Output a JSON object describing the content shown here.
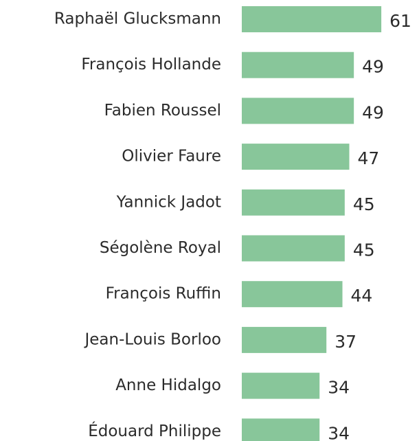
{
  "chart_data": {
    "type": "bar",
    "orientation": "horizontal",
    "color": "#88c69a",
    "categories": [
      "Raphaël Glucksmann",
      "François Hollande",
      "Fabien Roussel",
      "Olivier Faure",
      "Yannick Jadot",
      "Ségolène Royal",
      "François Ruffin",
      "Jean-Louis Borloo",
      "Anne Hidalgo",
      "Édouard Philippe"
    ],
    "values": [
      61,
      49,
      49,
      47,
      45,
      45,
      44,
      37,
      34,
      34
    ]
  }
}
